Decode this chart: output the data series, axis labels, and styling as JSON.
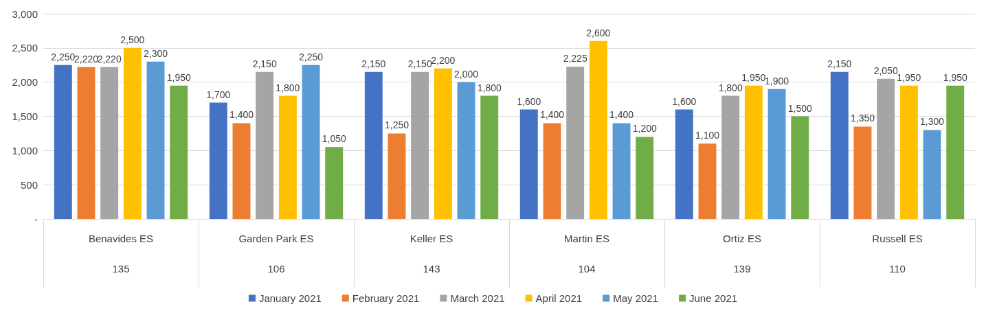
{
  "chart_data": {
    "type": "bar",
    "categories": [
      "Benavides ES\n135",
      "Garden Park ES\n106",
      "Keller ES\n143",
      "Martin ES\n104",
      "Ortiz ES\n139",
      "Russell ES\n110"
    ],
    "series": [
      {
        "name": "January 2021",
        "color": "#4472c4",
        "values": [
          2250,
          1700,
          2150,
          1600,
          1600,
          2150
        ],
        "value_labels": [
          "2,250",
          "1,700",
          "2,150",
          "1,600",
          "1,600",
          "2,150"
        ]
      },
      {
        "name": "February 2021",
        "color": "#ed7d31",
        "values": [
          2220,
          1400,
          1250,
          1400,
          1100,
          1350
        ],
        "value_labels": [
          "2,220",
          "1,400",
          "1,250",
          "1,400",
          "1,100",
          "1,350"
        ]
      },
      {
        "name": "March 2021",
        "color": "#a5a5a5",
        "values": [
          2220,
          2150,
          2150,
          2225,
          1800,
          2050
        ],
        "value_labels": [
          "2,220",
          "2,150",
          "2,150",
          "2,225",
          "1,800",
          "2,050"
        ]
      },
      {
        "name": "April 2021",
        "color": "#ffc000",
        "values": [
          2500,
          1800,
          2200,
          2600,
          1950,
          1950
        ],
        "value_labels": [
          "2,500",
          "1,800",
          "2,200",
          "2,600",
          "1,950",
          "1,950"
        ]
      },
      {
        "name": "May 2021",
        "color": "#5b9bd5",
        "values": [
          2300,
          2250,
          2000,
          1400,
          1900,
          1300
        ],
        "value_labels": [
          "2,300",
          "2,250",
          "2,000",
          "1,400",
          "1,900",
          "1,300"
        ]
      },
      {
        "name": "June 2021",
        "color": "#70ad47",
        "values": [
          1950,
          1050,
          1800,
          1200,
          1500,
          1950
        ],
        "value_labels": [
          "1,950",
          "1,050",
          "1,800",
          "1,200",
          "1,500",
          "1,950"
        ]
      }
    ],
    "ylim": [
      0,
      3000
    ],
    "yticks": [
      {
        "value": 0,
        "label": "-"
      },
      500,
      {
        "value": 1000,
        "label": "1,000"
      },
      {
        "value": 1500,
        "label": "1,500"
      },
      {
        "value": 2000,
        "label": "2,000"
      },
      {
        "value": 2500,
        "label": "2,500"
      },
      {
        "value": 3000,
        "label": "3,000"
      }
    ],
    "grid": "y",
    "legend": "bottom"
  }
}
